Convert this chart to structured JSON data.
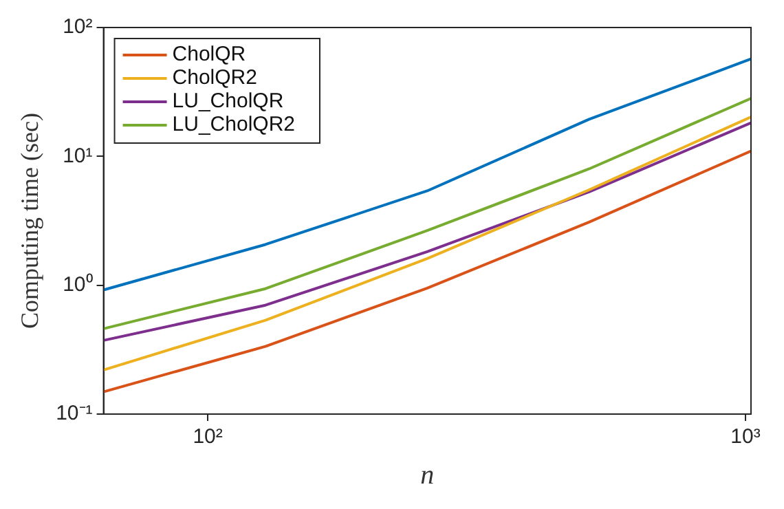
{
  "chart_data": {
    "type": "line",
    "xlabel": "n",
    "ylabel": "Computing time (sec)",
    "log": "xy",
    "grid": false,
    "legend": "top left",
    "marker": "none",
    "line_style": "solid",
    "x": [
      64,
      128,
      256,
      512,
      1024
    ],
    "xlim": [
      64,
      1024
    ],
    "xticks": [
      {
        "value": 100,
        "label": "10²"
      },
      {
        "value": 1000,
        "label": "10³"
      }
    ],
    "ylim": [
      0.1,
      100
    ],
    "yticks": [
      {
        "value": 0.1,
        "label": "10⁻¹"
      },
      {
        "value": 1,
        "label": "10⁰"
      },
      {
        "value": 10,
        "label": "10¹"
      },
      {
        "value": 100,
        "label": "10²"
      }
    ],
    "series": [
      {
        "color": "#0072bd",
        "values": [
          0.92,
          2.07,
          5.4,
          19.4,
          57
        ]
      },
      {
        "name": "CholQR",
        "color": "#d95319",
        "values": [
          0.149,
          0.335,
          0.95,
          3.09,
          11
        ]
      },
      {
        "name": "CholQR2",
        "color": "#edb120",
        "values": [
          0.22,
          0.535,
          1.61,
          5.5,
          20.2
        ]
      },
      {
        "name": "LU_CholQR",
        "color": "#7e2f8e",
        "values": [
          0.373,
          0.7,
          1.82,
          5.3,
          18.2
        ]
      },
      {
        "name": "LU_CholQR2",
        "color": "#77ac30",
        "values": [
          0.46,
          0.94,
          2.66,
          8.0,
          28.2
        ]
      }
    ]
  }
}
